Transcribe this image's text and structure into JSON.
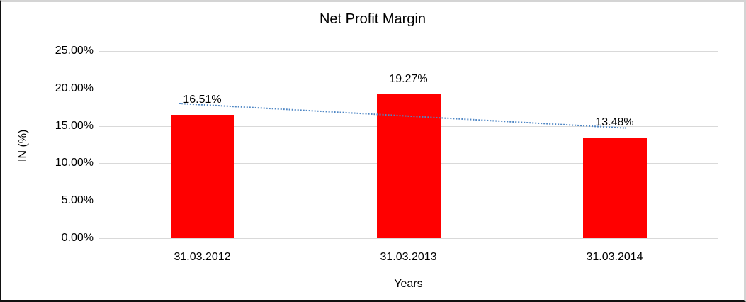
{
  "chart_data": {
    "type": "bar",
    "title": "Net Profit Margin",
    "xlabel": "Years",
    "ylabel": "IN (%)",
    "categories": [
      "31.03.2012",
      "31.03.2013",
      "31.03.2014"
    ],
    "values": [
      16.51,
      19.27,
      13.48
    ],
    "data_labels": [
      "16.51%",
      "19.27%",
      "13.48%"
    ],
    "yticks": [
      "25.00%",
      "20.00%",
      "15.00%",
      "10.00%",
      "5.00%",
      "0.00%"
    ],
    "ylim": [
      0,
      25
    ],
    "grid": "horizontal",
    "legend": "none",
    "bar_color": "#ff0000",
    "gridline_color": "#d9d9d9",
    "trendline": {
      "type": "linear",
      "style": "dotted",
      "color": "#4e86c4"
    }
  }
}
